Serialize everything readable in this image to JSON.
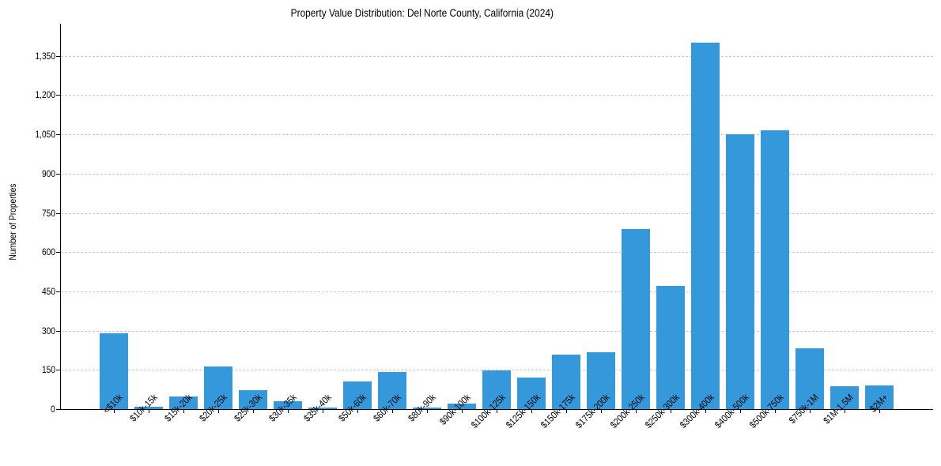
{
  "chart_data": {
    "type": "bar",
    "title": "Property Value Distribution: Del Norte County, California (2024)",
    "xlabel": "",
    "ylabel": "Number of Properties",
    "categories": [
      "<$10k",
      "$10k-15k",
      "$15k-20k",
      "$20k-25k",
      "$25k-30k",
      "$30k-35k",
      "$35k-40k",
      "$50k-60k",
      "$60k-70k",
      "$80k-90k",
      "$90k-100k",
      "$100k-125k",
      "$125k-150k",
      "$150k-175k",
      "$175k-200k",
      "$200k-250k",
      "$250k-300k",
      "$300k-400k",
      "$400k-500k",
      "$500k-750k",
      "$750k-1M",
      "$1M-1.5M",
      "$2M+"
    ],
    "values": [
      291,
      9,
      48,
      163,
      72,
      30,
      6,
      106,
      142,
      6,
      22,
      149,
      121,
      208,
      218,
      689,
      472,
      1401,
      1049,
      1066,
      233,
      88,
      91
    ],
    "yticks": [
      "0",
      "150",
      "300",
      "450",
      "600",
      "750",
      "900",
      "1,050",
      "1,200",
      "1,350"
    ],
    "ytick_values": [
      0,
      150,
      300,
      450,
      600,
      750,
      900,
      1050,
      1200,
      1350
    ],
    "ylim": [
      0,
      1473
    ],
    "grid": "y-dashed",
    "legend": null,
    "bar_color": "#3498db"
  }
}
